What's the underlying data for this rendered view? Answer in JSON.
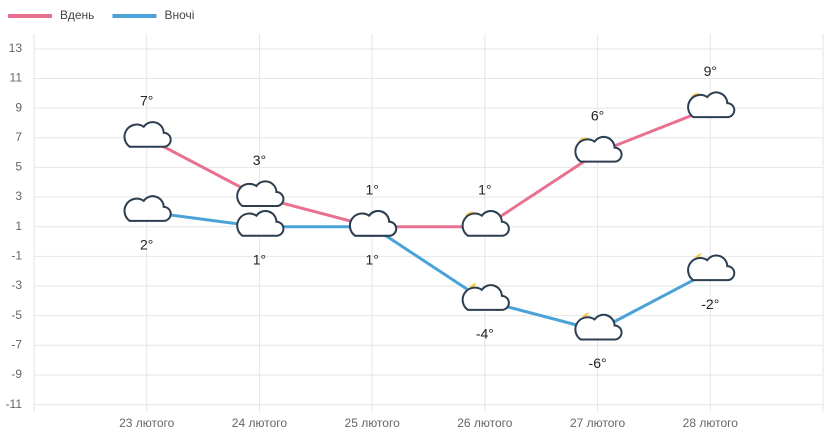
{
  "chart_data": {
    "type": "line",
    "categories": [
      "23 лютого",
      "24 лютого",
      "25 лютого",
      "26 лютого",
      "27 лютого",
      "28 лютого"
    ],
    "series": [
      {
        "name": "Вдень",
        "color": "#e8718f",
        "values": [
          7,
          3,
          1,
          1,
          6,
          9
        ],
        "value_labels": [
          "7°",
          "3°",
          "1°",
          "1°",
          "6°",
          "9°"
        ]
      },
      {
        "name": "Вночі",
        "color": "#4aa3d8",
        "values": [
          2,
          1,
          1,
          -4,
          -6,
          -2
        ],
        "value_labels": [
          "2°",
          "1°",
          "1°",
          "-4°",
          "-6°",
          "-2°"
        ]
      }
    ],
    "ylim": [
      -11.5,
      14
    ],
    "yticks": [
      13,
      11,
      9,
      7,
      5,
      3,
      1,
      -1,
      -3,
      -5,
      -7,
      -9,
      -11
    ],
    "grid": true,
    "legend": "top-left"
  }
}
